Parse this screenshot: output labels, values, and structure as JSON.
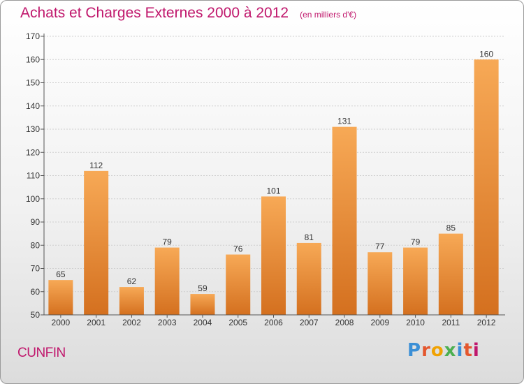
{
  "title": "Achats et Charges Externes 2000 à 2012",
  "unit_label": "(en milliers d'€)",
  "commune": "CUNFIN",
  "brand": {
    "name": "Proxiti",
    "letter_colors": [
      "#3b8fd6",
      "#e4572e",
      "#f0a202",
      "#4caf50",
      "#3b8fd6",
      "#e4572e",
      "#c0176c"
    ]
  },
  "colors": {
    "accent": "#c0176c",
    "bar_light": "#f7a956",
    "bar_dark": "#d4701f",
    "grid": "#cfcfcf",
    "axis": "#555555"
  },
  "chart_data": {
    "type": "bar",
    "categories": [
      "2000",
      "2001",
      "2002",
      "2003",
      "2004",
      "2005",
      "2006",
      "2007",
      "2008",
      "2009",
      "2010",
      "2011",
      "2012"
    ],
    "values": [
      65,
      112,
      62,
      79,
      59,
      76,
      101,
      81,
      131,
      77,
      79,
      85,
      160
    ],
    "ylim": [
      50,
      170
    ],
    "yticks": [
      50,
      60,
      70,
      80,
      90,
      100,
      110,
      120,
      130,
      140,
      150,
      160,
      170
    ],
    "grid": true,
    "xlabel": "",
    "ylabel": ""
  }
}
